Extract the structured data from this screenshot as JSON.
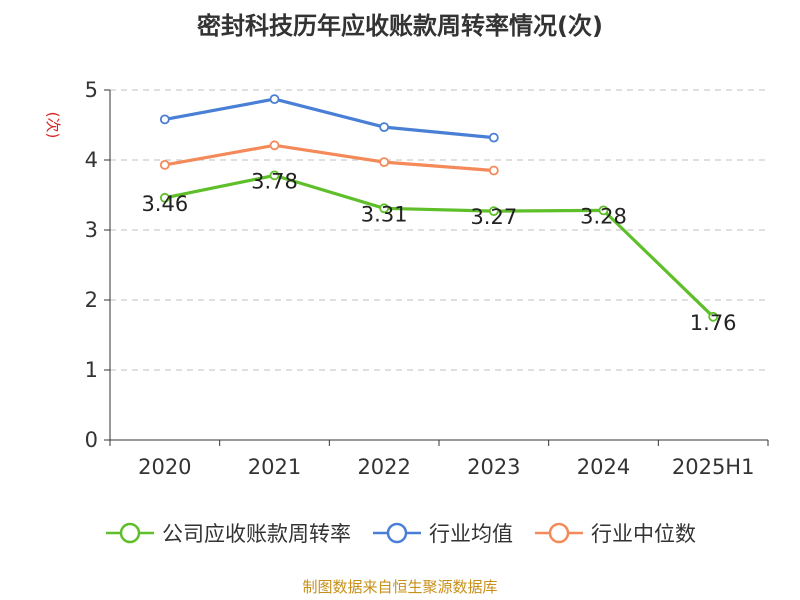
{
  "header": {
    "title": "密封科技历年应收账款周转率情况(次)"
  },
  "footer": {
    "source": "制图数据来自恒生聚源数据库"
  },
  "chart_data": {
    "type": "line",
    "title": "密封科技历年应收账款周转率情况(次)",
    "ylabel": "(次)",
    "xlabel": "",
    "categories": [
      "2020",
      "2021",
      "2022",
      "2023",
      "2024",
      "2025H1"
    ],
    "yticks": [
      "0",
      "1",
      "2",
      "3",
      "4",
      "5"
    ],
    "ylim": [
      0,
      5
    ],
    "grid": true,
    "legend_position": "bottom",
    "series": [
      {
        "name": "公司应收账款周转率",
        "color": "#5fbf2a",
        "values": [
          3.46,
          3.78,
          3.31,
          3.27,
          3.28,
          1.76
        ],
        "labels": [
          "3.46",
          "3.78",
          "3.31",
          "3.27",
          "3.28",
          "1.76"
        ]
      },
      {
        "name": "行业均值",
        "color": "#4a7fd6",
        "values": [
          4.58,
          4.87,
          4.47,
          4.32,
          null,
          null
        ]
      },
      {
        "name": "行业中位数",
        "color": "#f48a5a",
        "values": [
          3.93,
          4.21,
          3.97,
          3.85,
          null,
          null
        ]
      }
    ]
  }
}
